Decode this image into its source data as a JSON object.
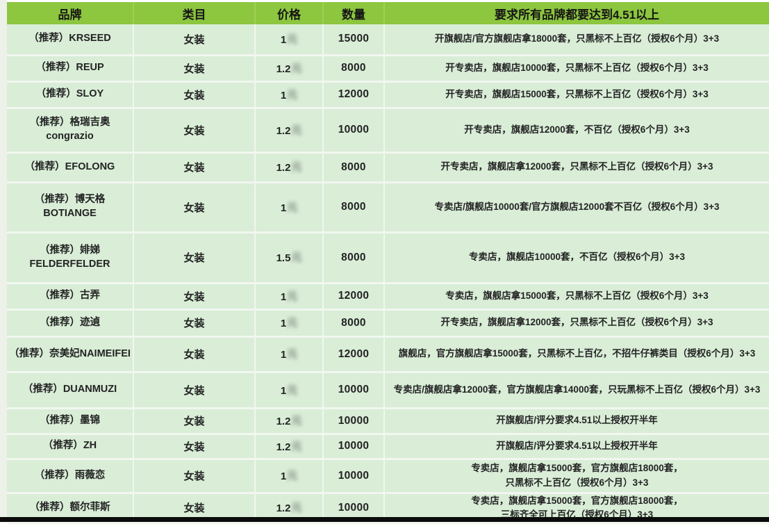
{
  "colors": {
    "header_bg": "#8dc63f",
    "row_bg": "#d9edd7",
    "grid_line": "#f2f7f0",
    "text": "#232323",
    "bottom_bar": "#0b0b0b"
  },
  "table": {
    "columns": [
      {
        "key": "brand",
        "label": "品牌"
      },
      {
        "key": "category",
        "label": "类目"
      },
      {
        "key": "price",
        "label": "价格"
      },
      {
        "key": "qty",
        "label": "数量"
      },
      {
        "key": "req",
        "label": "要求所有品牌都要达到4.51以上"
      }
    ],
    "rows": [
      {
        "brand": "（推荐）KRSEED",
        "category": "女装",
        "price": "1",
        "price_blur": "元",
        "qty": "15000",
        "req": "开旗舰店/官方旗舰店拿18000套，只黑标不上百亿（授权6个月）3+3"
      },
      {
        "brand": "（推荐）REUP",
        "category": "女装",
        "price": "1.2",
        "price_blur": "元",
        "qty": "8000",
        "req": "开专卖店，旗舰店10000套，只黑标不上百亿（授权6个月）3+3"
      },
      {
        "brand": "（推荐）SLOY",
        "category": "女装",
        "price": "1",
        "price_blur": "元",
        "qty": "12000",
        "req": "开专卖店，旗舰店15000套，只黑标不上百亿（授权6个月）3+3"
      },
      {
        "brand": "（推荐）格瑞吉奥\ncongrazio",
        "category": "女装",
        "price": "1.2",
        "price_blur": "元",
        "qty": "10000",
        "req": "开专卖店，旗舰店12000套，不百亿（授权6个月）3+3"
      },
      {
        "brand": "（推荐）EFOLONG",
        "category": "女装",
        "price": "1.2",
        "price_blur": "元",
        "qty": "8000",
        "req": "开专卖店，旗舰店拿12000套，只黑标不上百亿（授权6个月）3+3"
      },
      {
        "brand": "（推荐）博天格\nBOTIANGE",
        "category": "女装",
        "price": "1",
        "price_blur": "元",
        "qty": "8000",
        "req": "专卖店/旗舰店10000套/官方旗舰店12000套不百亿（授权6个月）3+3"
      },
      {
        "brand": "（推荐）婔娣\nFELDERFELDER",
        "category": "女装",
        "price": "1.5",
        "price_blur": "元",
        "qty": "8000",
        "req": "专卖店，旗舰店10000套，不百亿（授权6个月）3+3"
      },
      {
        "brand": "（推荐）古弄",
        "category": "女装",
        "price": "1",
        "price_blur": "元",
        "qty": "12000",
        "req": "专卖店，旗舰店拿15000套，只黑标不上百亿（授权6个月）3+3"
      },
      {
        "brand": "（推荐）迹遉",
        "category": "女装",
        "price": "1",
        "price_blur": "元",
        "qty": "8000",
        "req": "开专卖店，旗舰店拿12000套，只黑标不上百亿（授权6个月）3+3"
      },
      {
        "brand": "（推荐）奈美妃NAIMEIFEI",
        "category": "女装",
        "price": "1",
        "price_blur": "元",
        "qty": "12000",
        "req": "旗舰店，官方旗舰店拿15000套，只黑标不上百亿，不招牛仔裤类目（授权6个月）3+3"
      },
      {
        "brand": "（推荐）DUANMUZI",
        "category": "女装",
        "price": "1",
        "price_blur": "元",
        "qty": "10000",
        "req": "专卖店/旗舰店拿12000套，官方旗舰店拿14000套，只玩黑标不上百亿（授权6个月）3+3"
      },
      {
        "brand": "（推荐）墨锦",
        "category": "女装",
        "price": "1.2",
        "price_blur": "元",
        "qty": "10000",
        "req": "开旗舰店/评分要求4.51以上授权开半年"
      },
      {
        "brand": "（推荐）ZH",
        "category": "女装",
        "price": "1.2",
        "price_blur": "元",
        "qty": "10000",
        "req": "开旗舰店/评分要求4.51以上授权开半年"
      },
      {
        "brand": "（推荐）雨薇恋",
        "category": "女装",
        "price": "1",
        "price_blur": "元",
        "qty": "10000",
        "req": "专卖店，旗舰店拿15000套，官方旗舰店18000套，\n只黑标不上百亿（授权6个月）3+3"
      },
      {
        "brand": "（推荐）额尔菲斯",
        "category": "女装",
        "price": "1.2",
        "price_blur": "元",
        "qty": "10000",
        "req": "专卖店，旗舰店拿15000套，官方旗舰店18000套，\n三标齐全可上百亿（授权6个月）3+3"
      }
    ]
  }
}
